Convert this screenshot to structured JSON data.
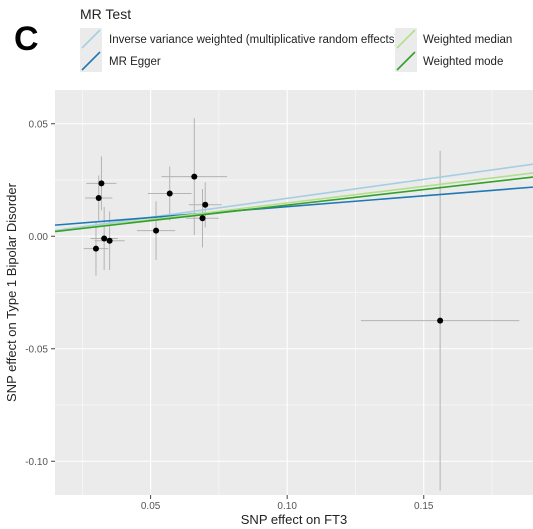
{
  "panel_label": "C",
  "chart_data": {
    "type": "scatter",
    "title": "",
    "xlabel": "SNP effect on FT3",
    "ylabel": "SNP effect on Type 1 Bipolar Disorder",
    "xlim": [
      0.015,
      0.19
    ],
    "ylim": [
      -0.115,
      0.065
    ],
    "grid": true,
    "legend_placement": "top",
    "legend_title": "MR Test",
    "x_ticks": [
      {
        "value": 0.05,
        "label": "0.05"
      },
      {
        "value": 0.1,
        "label": "0.10"
      },
      {
        "value": 0.15,
        "label": "0.15"
      }
    ],
    "y_ticks": [
      {
        "value": 0.05,
        "label": "0.05"
      },
      {
        "value": 0.0,
        "label": "0.00"
      },
      {
        "value": -0.05,
        "label": "-0.05"
      },
      {
        "value": -0.1,
        "label": "-0.10"
      }
    ],
    "points": [
      {
        "x": 0.03,
        "y": -0.0055,
        "x_err": 0.0045,
        "y_err": 0.012
      },
      {
        "x": 0.031,
        "y": 0.017,
        "x_err": 0.005,
        "y_err": 0.01
      },
      {
        "x": 0.032,
        "y": 0.0235,
        "x_err": 0.0055,
        "y_err": 0.012
      },
      {
        "x": 0.033,
        "y": -0.001,
        "x_err": 0.005,
        "y_err": 0.014
      },
      {
        "x": 0.035,
        "y": -0.002,
        "x_err": 0.0055,
        "y_err": 0.013
      },
      {
        "x": 0.052,
        "y": 0.0025,
        "x_err": 0.007,
        "y_err": 0.013
      },
      {
        "x": 0.057,
        "y": 0.019,
        "x_err": 0.008,
        "y_err": 0.012
      },
      {
        "x": 0.066,
        "y": 0.0265,
        "x_err": 0.012,
        "y_err": 0.026
      },
      {
        "x": 0.069,
        "y": 0.008,
        "x_err": 0.006,
        "y_err": 0.013
      },
      {
        "x": 0.07,
        "y": 0.014,
        "x_err": 0.006,
        "y_err": 0.01
      },
      {
        "x": 0.156,
        "y": -0.0375,
        "x_err": 0.029,
        "y_err": 0.0755
      }
    ],
    "series": [
      {
        "name": "Inverse variance weighted (multiplicative random effects)",
        "color": "#a6cee3",
        "intercept": 0.0,
        "slope": 0.1685
      },
      {
        "name": "MR Egger",
        "color": "#1f78b4",
        "intercept": 0.0035,
        "slope": 0.0965
      },
      {
        "name": "Weighted median",
        "color": "#b2df8a",
        "intercept": 0.0,
        "slope": 0.148
      },
      {
        "name": "Weighted mode",
        "color": "#33a02c",
        "intercept": 0.0,
        "slope": 0.1385
      }
    ]
  }
}
